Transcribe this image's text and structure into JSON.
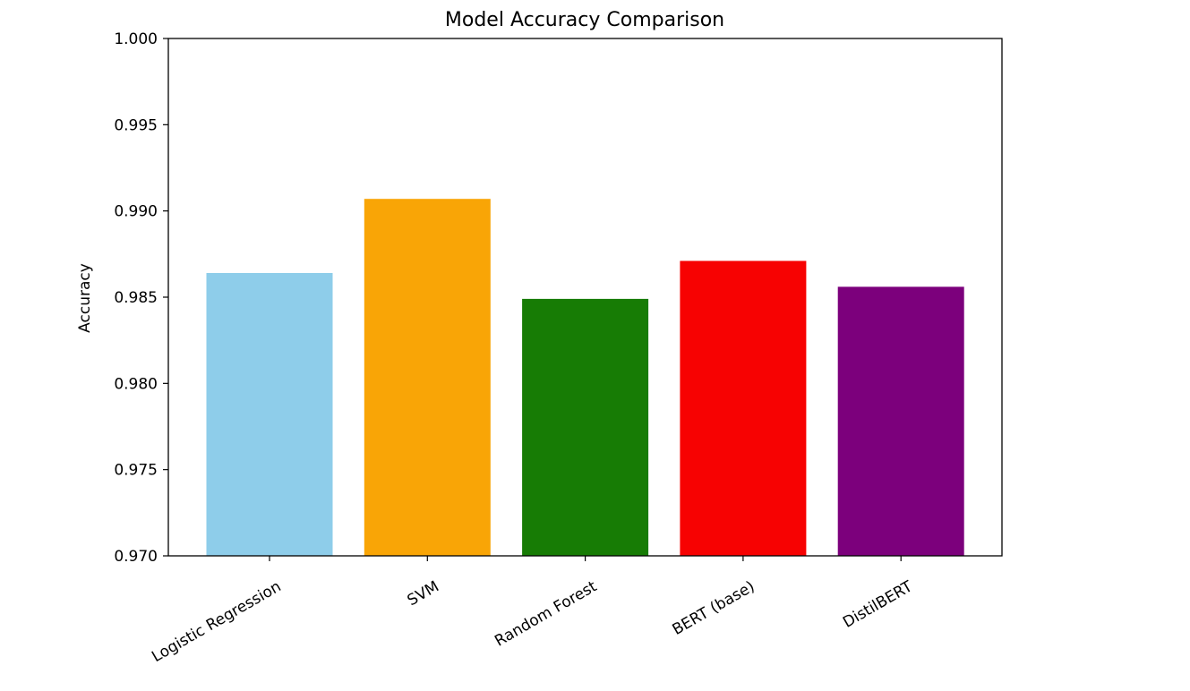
{
  "chart_data": {
    "type": "bar",
    "title": "Model Accuracy Comparison",
    "xlabel": "",
    "ylabel": "Accuracy",
    "ylim": [
      0.97,
      1.0
    ],
    "yticks": [
      "0.970",
      "0.975",
      "0.980",
      "0.985",
      "0.990",
      "0.995",
      "1.000"
    ],
    "categories": [
      "Logistic Regression",
      "SVM",
      "Random Forest",
      "BERT (base)",
      "DistilBERT"
    ],
    "values": [
      0.9864,
      0.9907,
      0.9849,
      0.9871,
      0.9856
    ],
    "colors": [
      "#8ecdea",
      "#f9a506",
      "#177c05",
      "#f70202",
      "#7c007c"
    ],
    "grid": false,
    "legend": "none"
  }
}
